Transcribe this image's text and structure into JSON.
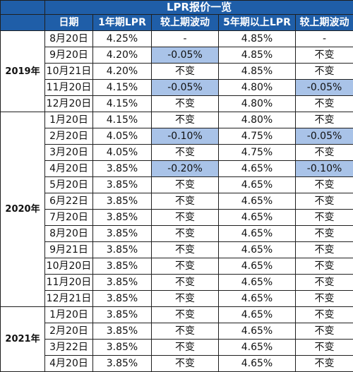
{
  "title": "LPR报价一览",
  "headers": [
    "日期",
    "1年期LPR",
    "较上期波动",
    "5年期以上LPR",
    "较上期波动"
  ],
  "groups": [
    {
      "year": "2019年",
      "rows": [
        {
          "date": "8月20日",
          "lpr1": "4.25%",
          "chg1": "-",
          "lpr5": "4.85%",
          "chg5": "-"
        },
        {
          "date": "9月20日",
          "lpr1": "4.20%",
          "chg1": "-0.05%",
          "lpr5": "4.85%",
          "chg5": "不变"
        },
        {
          "date": "10月21日",
          "lpr1": "4.20%",
          "chg1": "不变",
          "lpr5": "4.85%",
          "chg5": "不变"
        },
        {
          "date": "11月20日",
          "lpr1": "4.15%",
          "chg1": "-0.05%",
          "lpr5": "4.80%",
          "chg5": "-0.05%"
        },
        {
          "date": "12月20日",
          "lpr1": "4.15%",
          "chg1": "不变",
          "lpr5": "4.80%",
          "chg5": "不变"
        }
      ]
    },
    {
      "year": "2020年",
      "rows": [
        {
          "date": "1月20日",
          "lpr1": "4.15%",
          "chg1": "不变",
          "lpr5": "4.80%",
          "chg5": "不变"
        },
        {
          "date": "2月20日",
          "lpr1": "4.05%",
          "chg1": "-0.10%",
          "lpr5": "4.75%",
          "chg5": "-0.05%"
        },
        {
          "date": "3月20日",
          "lpr1": "4.05%",
          "chg1": "不变",
          "lpr5": "4.75%",
          "chg5": "不变"
        },
        {
          "date": "4月20日",
          "lpr1": "3.85%",
          "chg1": "-0.20%",
          "lpr5": "4.65%",
          "chg5": "-0.10%"
        },
        {
          "date": "5月20日",
          "lpr1": "3.85%",
          "chg1": "不变",
          "lpr5": "4.65%",
          "chg5": "不变"
        },
        {
          "date": "6月22日",
          "lpr1": "3.85%",
          "chg1": "不变",
          "lpr5": "4.65%",
          "chg5": "不变"
        },
        {
          "date": "7月20日",
          "lpr1": "3.85%",
          "chg1": "不变",
          "lpr5": "4.65%",
          "chg5": "不变"
        },
        {
          "date": "8月20日",
          "lpr1": "3.85%",
          "chg1": "不变",
          "lpr5": "4.65%",
          "chg5": "不变"
        },
        {
          "date": "9月21日",
          "lpr1": "3.85%",
          "chg1": "不变",
          "lpr5": "4.65%",
          "chg5": "不变"
        },
        {
          "date": "10月20日",
          "lpr1": "3.85%",
          "chg1": "不变",
          "lpr5": "4.65%",
          "chg5": "不变"
        },
        {
          "date": "11月20日",
          "lpr1": "3.85%",
          "chg1": "不变",
          "lpr5": "4.65%",
          "chg5": "不变"
        },
        {
          "date": "12月21日",
          "lpr1": "3.85%",
          "chg1": "不变",
          "lpr5": "4.65%",
          "chg5": "不变"
        }
      ]
    },
    {
      "year": "2021年",
      "rows": [
        {
          "date": "1月20日",
          "lpr1": "3.85%",
          "chg1": "不变",
          "lpr5": "4.65%",
          "chg5": "不变"
        },
        {
          "date": "2月20日",
          "lpr1": "3.85%",
          "chg1": "不变",
          "lpr5": "4.65%",
          "chg5": "不变"
        },
        {
          "date": "3月22日",
          "lpr1": "3.85%",
          "chg1": "不变",
          "lpr5": "4.65%",
          "chg5": "不变"
        },
        {
          "date": "4月20日",
          "lpr1": "3.85%",
          "chg1": "不变",
          "lpr5": "4.65%",
          "chg5": "不变"
        }
      ]
    }
  ],
  "colors": {
    "header_bg": "#1f5ea8",
    "header_text": "#ffffff",
    "highlight_bg": "#a9c3e8",
    "border": "#1f1f1f"
  }
}
